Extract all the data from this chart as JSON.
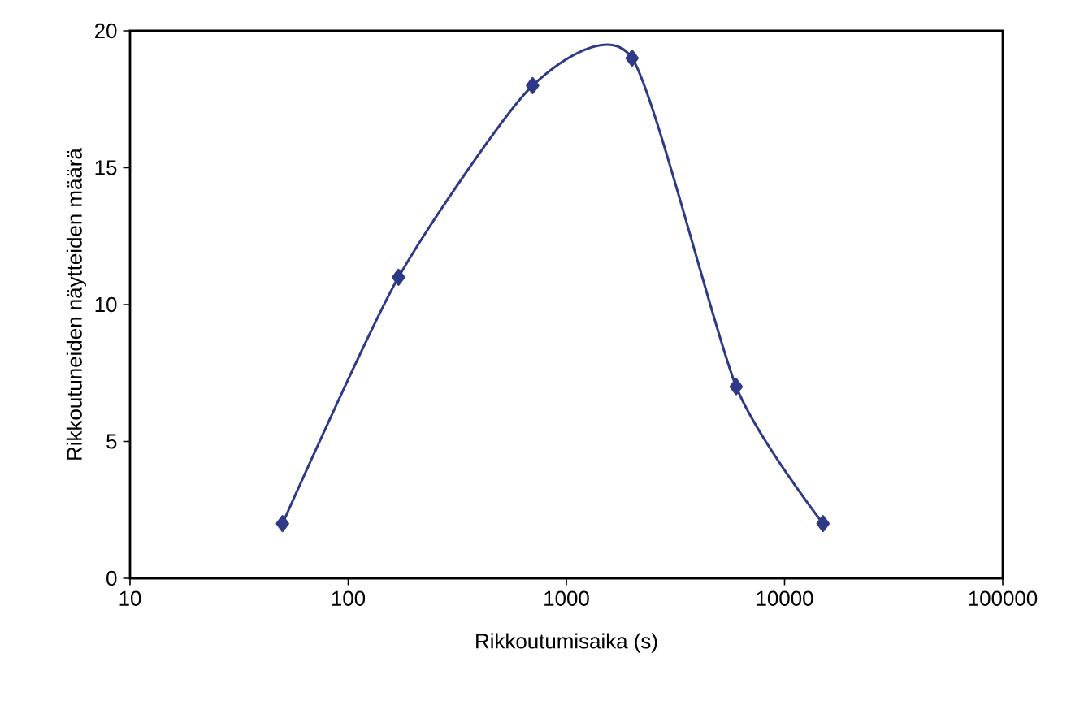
{
  "chart_data": {
    "type": "line",
    "xlabel": "Rikkoutumisaika (s)",
    "ylabel": "Rikkoutuneiden näytteiden määrä",
    "log": "x",
    "x": [
      50,
      170,
      700,
      2000,
      6000,
      15000
    ],
    "series": [
      {
        "color": "#2e3a87",
        "values": [
          2,
          11,
          18,
          19,
          7,
          2
        ]
      }
    ],
    "xlim": [
      10,
      100000
    ],
    "xticks": [
      10,
      100,
      1000,
      10000,
      100000
    ],
    "ylim": [
      0,
      20
    ],
    "yticks": [
      0,
      5,
      10,
      15,
      20
    ],
    "marker": "diamond",
    "line_style": "solid",
    "grid": false
  }
}
